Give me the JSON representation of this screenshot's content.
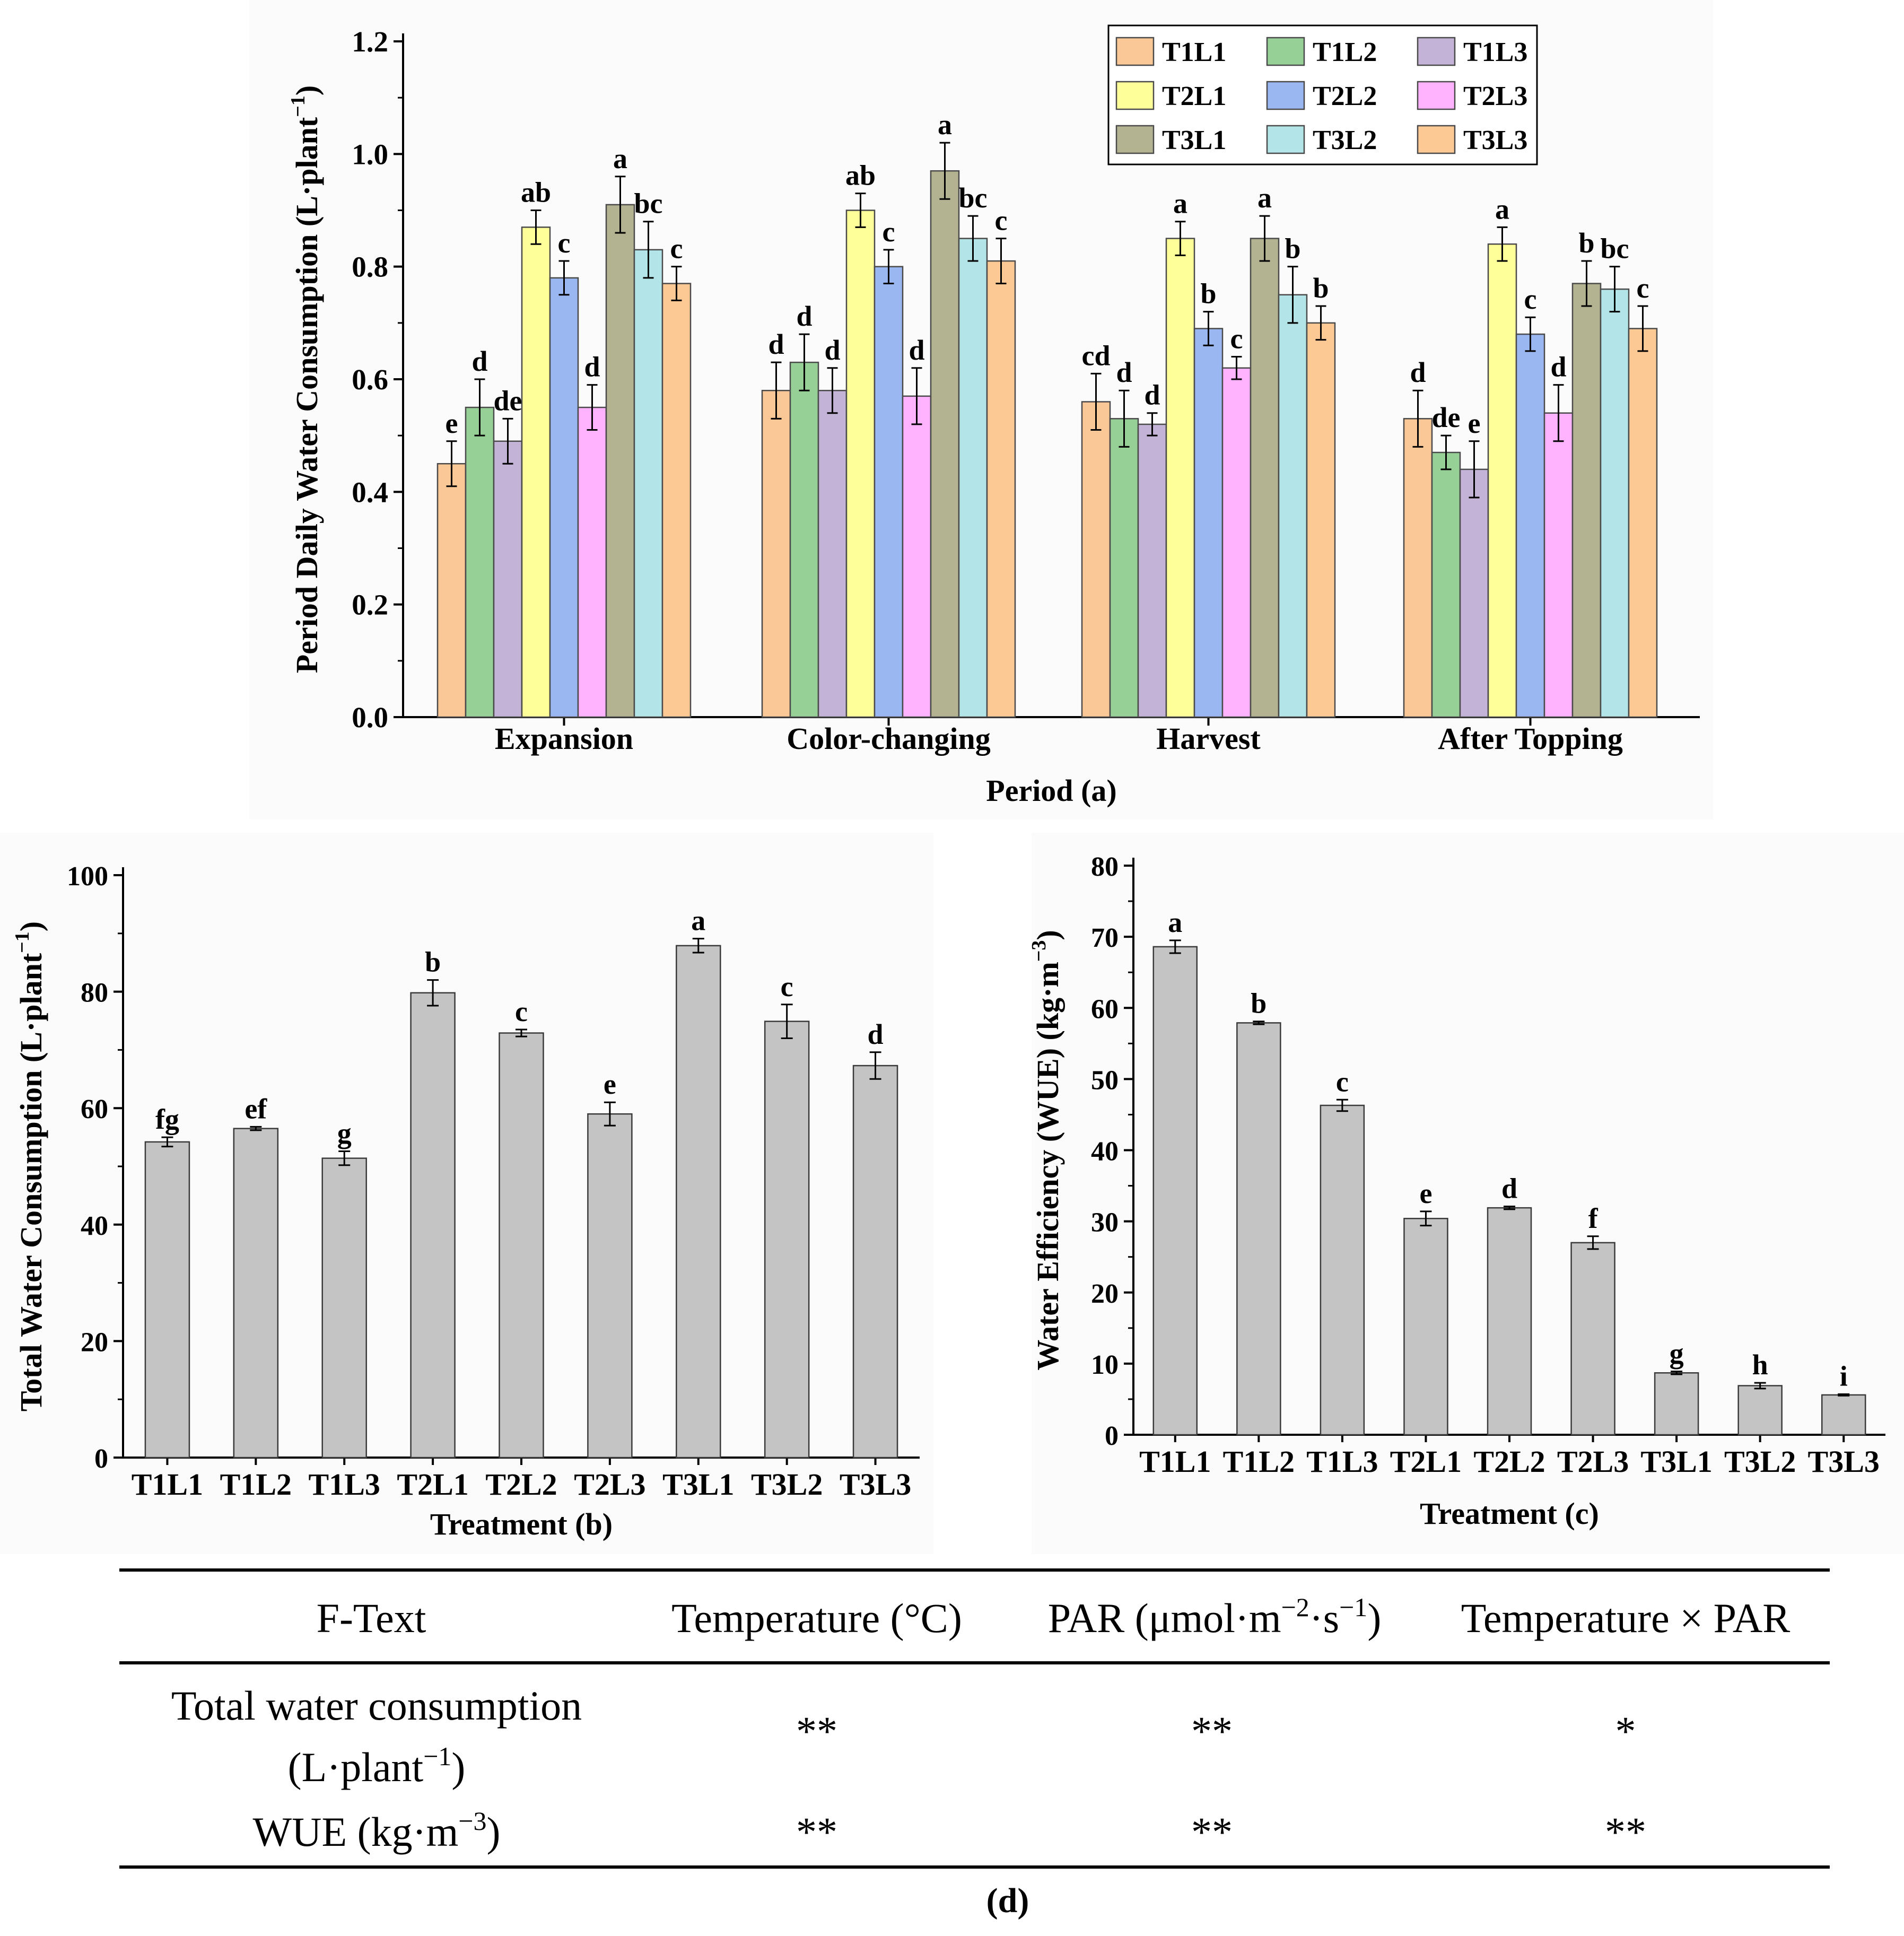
{
  "colors": {
    "panel_bg": "#fbfbfb",
    "gray_bar": "#c4c4c4",
    "axis": "#000000"
  },
  "chart_data": [
    {
      "id": "a",
      "type": "bar",
      "title": "",
      "xlabel": "Period (a)",
      "ylabel": "Period Daily Water Consumption (L·plant",
      "ylabel_sup": "−1",
      "ylabel_end": ")",
      "ylim": [
        0,
        1.2
      ],
      "yticks": [
        "0.0",
        "0.2",
        "0.4",
        "0.6",
        "0.8",
        "1.0",
        "1.2"
      ],
      "categories": [
        "Expansion",
        "Color-changing",
        "Harvest",
        "After Topping"
      ],
      "legend_position": "top-right",
      "series": [
        {
          "name": "T1L1",
          "color": "#f9c896",
          "values": [
            0.45,
            0.58,
            0.56,
            0.53
          ],
          "errors": [
            0.04,
            0.05,
            0.05,
            0.05
          ],
          "letters": [
            "e",
            "d",
            "cd",
            "d"
          ]
        },
        {
          "name": "T1L2",
          "color": "#96d096",
          "values": [
            0.55,
            0.63,
            0.53,
            0.47
          ],
          "errors": [
            0.05,
            0.05,
            0.05,
            0.03
          ],
          "letters": [
            "d",
            "d",
            "d",
            "de"
          ]
        },
        {
          "name": "T1L3",
          "color": "#c3b3d6",
          "values": [
            0.49,
            0.58,
            0.52,
            0.44
          ],
          "errors": [
            0.04,
            0.04,
            0.02,
            0.05
          ],
          "letters": [
            "de",
            "d",
            "d",
            "e"
          ]
        },
        {
          "name": "T2L1",
          "color": "#ffff99",
          "values": [
            0.87,
            0.9,
            0.85,
            0.84
          ],
          "errors": [
            0.03,
            0.03,
            0.03,
            0.03
          ],
          "letters": [
            "ab",
            "ab",
            "a",
            "a"
          ]
        },
        {
          "name": "T2L2",
          "color": "#9bb7f2",
          "values": [
            0.78,
            0.8,
            0.69,
            0.68
          ],
          "errors": [
            0.03,
            0.03,
            0.03,
            0.03
          ],
          "letters": [
            "c",
            "c",
            "b",
            "c"
          ]
        },
        {
          "name": "T2L3",
          "color": "#ffb3ff",
          "values": [
            0.55,
            0.57,
            0.62,
            0.54
          ],
          "errors": [
            0.04,
            0.05,
            0.02,
            0.05
          ],
          "letters": [
            "d",
            "d",
            "c",
            "d"
          ]
        },
        {
          "name": "T3L1",
          "color": "#b3b391",
          "values": [
            0.91,
            0.97,
            0.85,
            0.77
          ],
          "errors": [
            0.05,
            0.05,
            0.04,
            0.04
          ],
          "letters": [
            "a",
            "a",
            "a",
            "b"
          ]
        },
        {
          "name": "T3L2",
          "color": "#b3e5e8",
          "values": [
            0.83,
            0.85,
            0.75,
            0.76
          ],
          "errors": [
            0.05,
            0.04,
            0.05,
            0.04
          ],
          "letters": [
            "bc",
            "bc",
            "b",
            "bc"
          ]
        },
        {
          "name": "T3L3",
          "color": "#fcc995",
          "values": [
            0.77,
            0.81,
            0.7,
            0.69
          ],
          "errors": [
            0.03,
            0.04,
            0.03,
            0.04
          ],
          "letters": [
            "c",
            "c",
            "b",
            "c"
          ]
        }
      ]
    },
    {
      "id": "b",
      "type": "bar",
      "title": "",
      "xlabel": "Treatment (b)",
      "ylabel": "Total Water Consumption (L·plant",
      "ylabel_sup": "−1",
      "ylabel_end": ")",
      "ylim": [
        0,
        100
      ],
      "yticks": [
        "0",
        "20",
        "40",
        "60",
        "80",
        "100"
      ],
      "categories": [
        "T1L1",
        "T1L2",
        "T1L3",
        "T2L1",
        "T2L2",
        "T2L3",
        "T3L1",
        "T3L2",
        "T3L3"
      ],
      "values": [
        54.2,
        56.5,
        51.4,
        79.8,
        72.9,
        59.0,
        87.9,
        74.9,
        67.3
      ],
      "errors": [
        0.8,
        0.3,
        1.2,
        2.2,
        0.6,
        2.0,
        1.2,
        2.9,
        2.3
      ],
      "letters": [
        "fg",
        "ef",
        "g",
        "b",
        "c",
        "e",
        "a",
        "c",
        "d"
      ]
    },
    {
      "id": "c",
      "type": "bar",
      "title": "",
      "xlabel": "Treatment (c)",
      "ylabel": "Water Efficiency (WUE) (kg·m",
      "ylabel_sup": "−3",
      "ylabel_end": ")",
      "ylim": [
        0,
        80
      ],
      "yticks": [
        "0",
        "10",
        "20",
        "30",
        "40",
        "50",
        "60",
        "70",
        "80"
      ],
      "categories": [
        "T1L1",
        "T1L2",
        "T1L3",
        "T2L1",
        "T2L2",
        "T2L3",
        "T3L1",
        "T3L2",
        "T3L3"
      ],
      "values": [
        68.6,
        57.9,
        46.3,
        30.4,
        31.9,
        27.0,
        8.7,
        6.9,
        5.6
      ],
      "errors": [
        0.9,
        0.2,
        0.8,
        1.0,
        0.2,
        0.9,
        0.2,
        0.4,
        0.1
      ],
      "letters": [
        "a",
        "b",
        "c",
        "e",
        "d",
        "f",
        "g",
        "h",
        "i"
      ]
    }
  ],
  "table": {
    "headers": [
      "F-Text",
      "Temperature (°C)",
      "PAR (μmol·m",
      "Temperature × PAR"
    ],
    "par_sup1": "−2",
    "par_mid": "·s",
    "par_sup2": "−1",
    "par_end": ")",
    "row1_label_line1": "Total water consumption",
    "row1_label_line2": "(L·plant",
    "row1_sup": "−1",
    "row1_end": ")",
    "row1_values": [
      "**",
      "**",
      "*"
    ],
    "row2_label": "WUE (kg·m",
    "row2_sup": "−3",
    "row2_end": ")",
    "row2_values": [
      "**",
      "**",
      "**"
    ],
    "caption": "(d)"
  }
}
